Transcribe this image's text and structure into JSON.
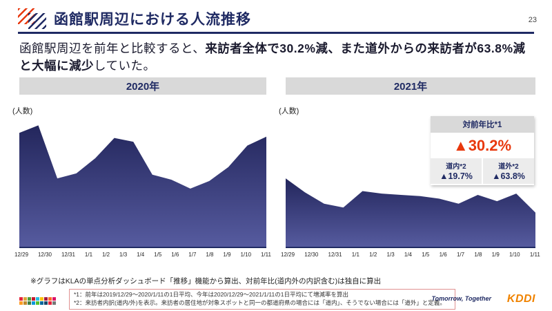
{
  "page": {
    "number": "23"
  },
  "header": {
    "title": "函館駅周辺における人流推移"
  },
  "lead": {
    "pre": "函館駅周辺を前年と比較すると、",
    "bold": "来訪者全体で30.2%減、また道外からの来訪者が63.8%減と大幅に減少",
    "post": "していた。"
  },
  "yoy_box": {
    "title": "対前年比*1",
    "total": "▲30.2%",
    "cols": [
      {
        "label": "道内*2",
        "value": "▲19.7%"
      },
      {
        "label": "道外*2",
        "value": "▲63.8%"
      }
    ]
  },
  "footnote": "※グラフはKLAの単点分析ダッシュボード「推移」機能から算出、対前年比(道内外の内訳含む)は独自に算出",
  "notes": [
    "*1：前年は2019/12/29～2020/1/11の1日平均、今年は2020/12/29～2021/1/11の1日平均にて増減率を算出",
    "*2：来訪者内訳(道内/外)を表示。来訪者の居住地が対象スポットと同一の都道府県の場合には「道内」、そうでない場合には「道外」と定義。"
  ],
  "footer": {
    "tagline": "Tomorrow, Together",
    "logo": "KDDI",
    "sdgs_colors": [
      "#e5243b",
      "#dda63a",
      "#4c9f38",
      "#c5192d",
      "#26bde2",
      "#fcc30b",
      "#a21942",
      "#fd6925",
      "#dd1367",
      "#fd9d24",
      "#bf8b2e",
      "#3f7e44",
      "#0a97d9",
      "#56c02b",
      "#00689d",
      "#19486a",
      "#e5243b",
      "#777777"
    ]
  },
  "colors": {
    "navy": "#1f2a63",
    "accent_red": "#e8380d",
    "bar_gray": "#d9d9d9",
    "kddi_orange": "#f08300"
  },
  "chart_data": [
    {
      "type": "area",
      "title": "2020年",
      "ylabel": "(人数)",
      "categories": [
        "12/29",
        "12/30",
        "12/31",
        "1/1",
        "1/2",
        "1/3",
        "1/4",
        "1/5",
        "1/6",
        "1/7",
        "1/8",
        "1/9",
        "1/10",
        "1/11"
      ],
      "values": [
        90,
        96,
        54,
        58,
        70,
        86,
        83,
        57,
        53,
        46,
        52,
        63,
        80,
        87
      ],
      "ylim": [
        0,
        100
      ],
      "y_ticks": "none (relative visitor counts, unlabeled axis)",
      "grid": "off",
      "fill_top": "#23265c",
      "fill_bottom": "#565b9f",
      "axis_color": "#1f2a63"
    },
    {
      "type": "area",
      "title": "2021年",
      "ylabel": "(人数)",
      "categories": [
        "12/29",
        "12/30",
        "12/31",
        "1/1",
        "1/2",
        "1/3",
        "1/4",
        "1/5",
        "1/6",
        "1/7",
        "1/8",
        "1/9",
        "1/10",
        "1/11"
      ],
      "values": [
        54,
        43,
        34,
        31,
        44,
        42,
        41,
        40,
        38,
        34,
        41,
        36,
        42,
        27
      ],
      "ylim": [
        0,
        100
      ],
      "y_ticks": "none (relative visitor counts, unlabeled axis)",
      "grid": "off",
      "fill_top": "#23265c",
      "fill_bottom": "#565b9f",
      "axis_color": "#1f2a63"
    }
  ]
}
